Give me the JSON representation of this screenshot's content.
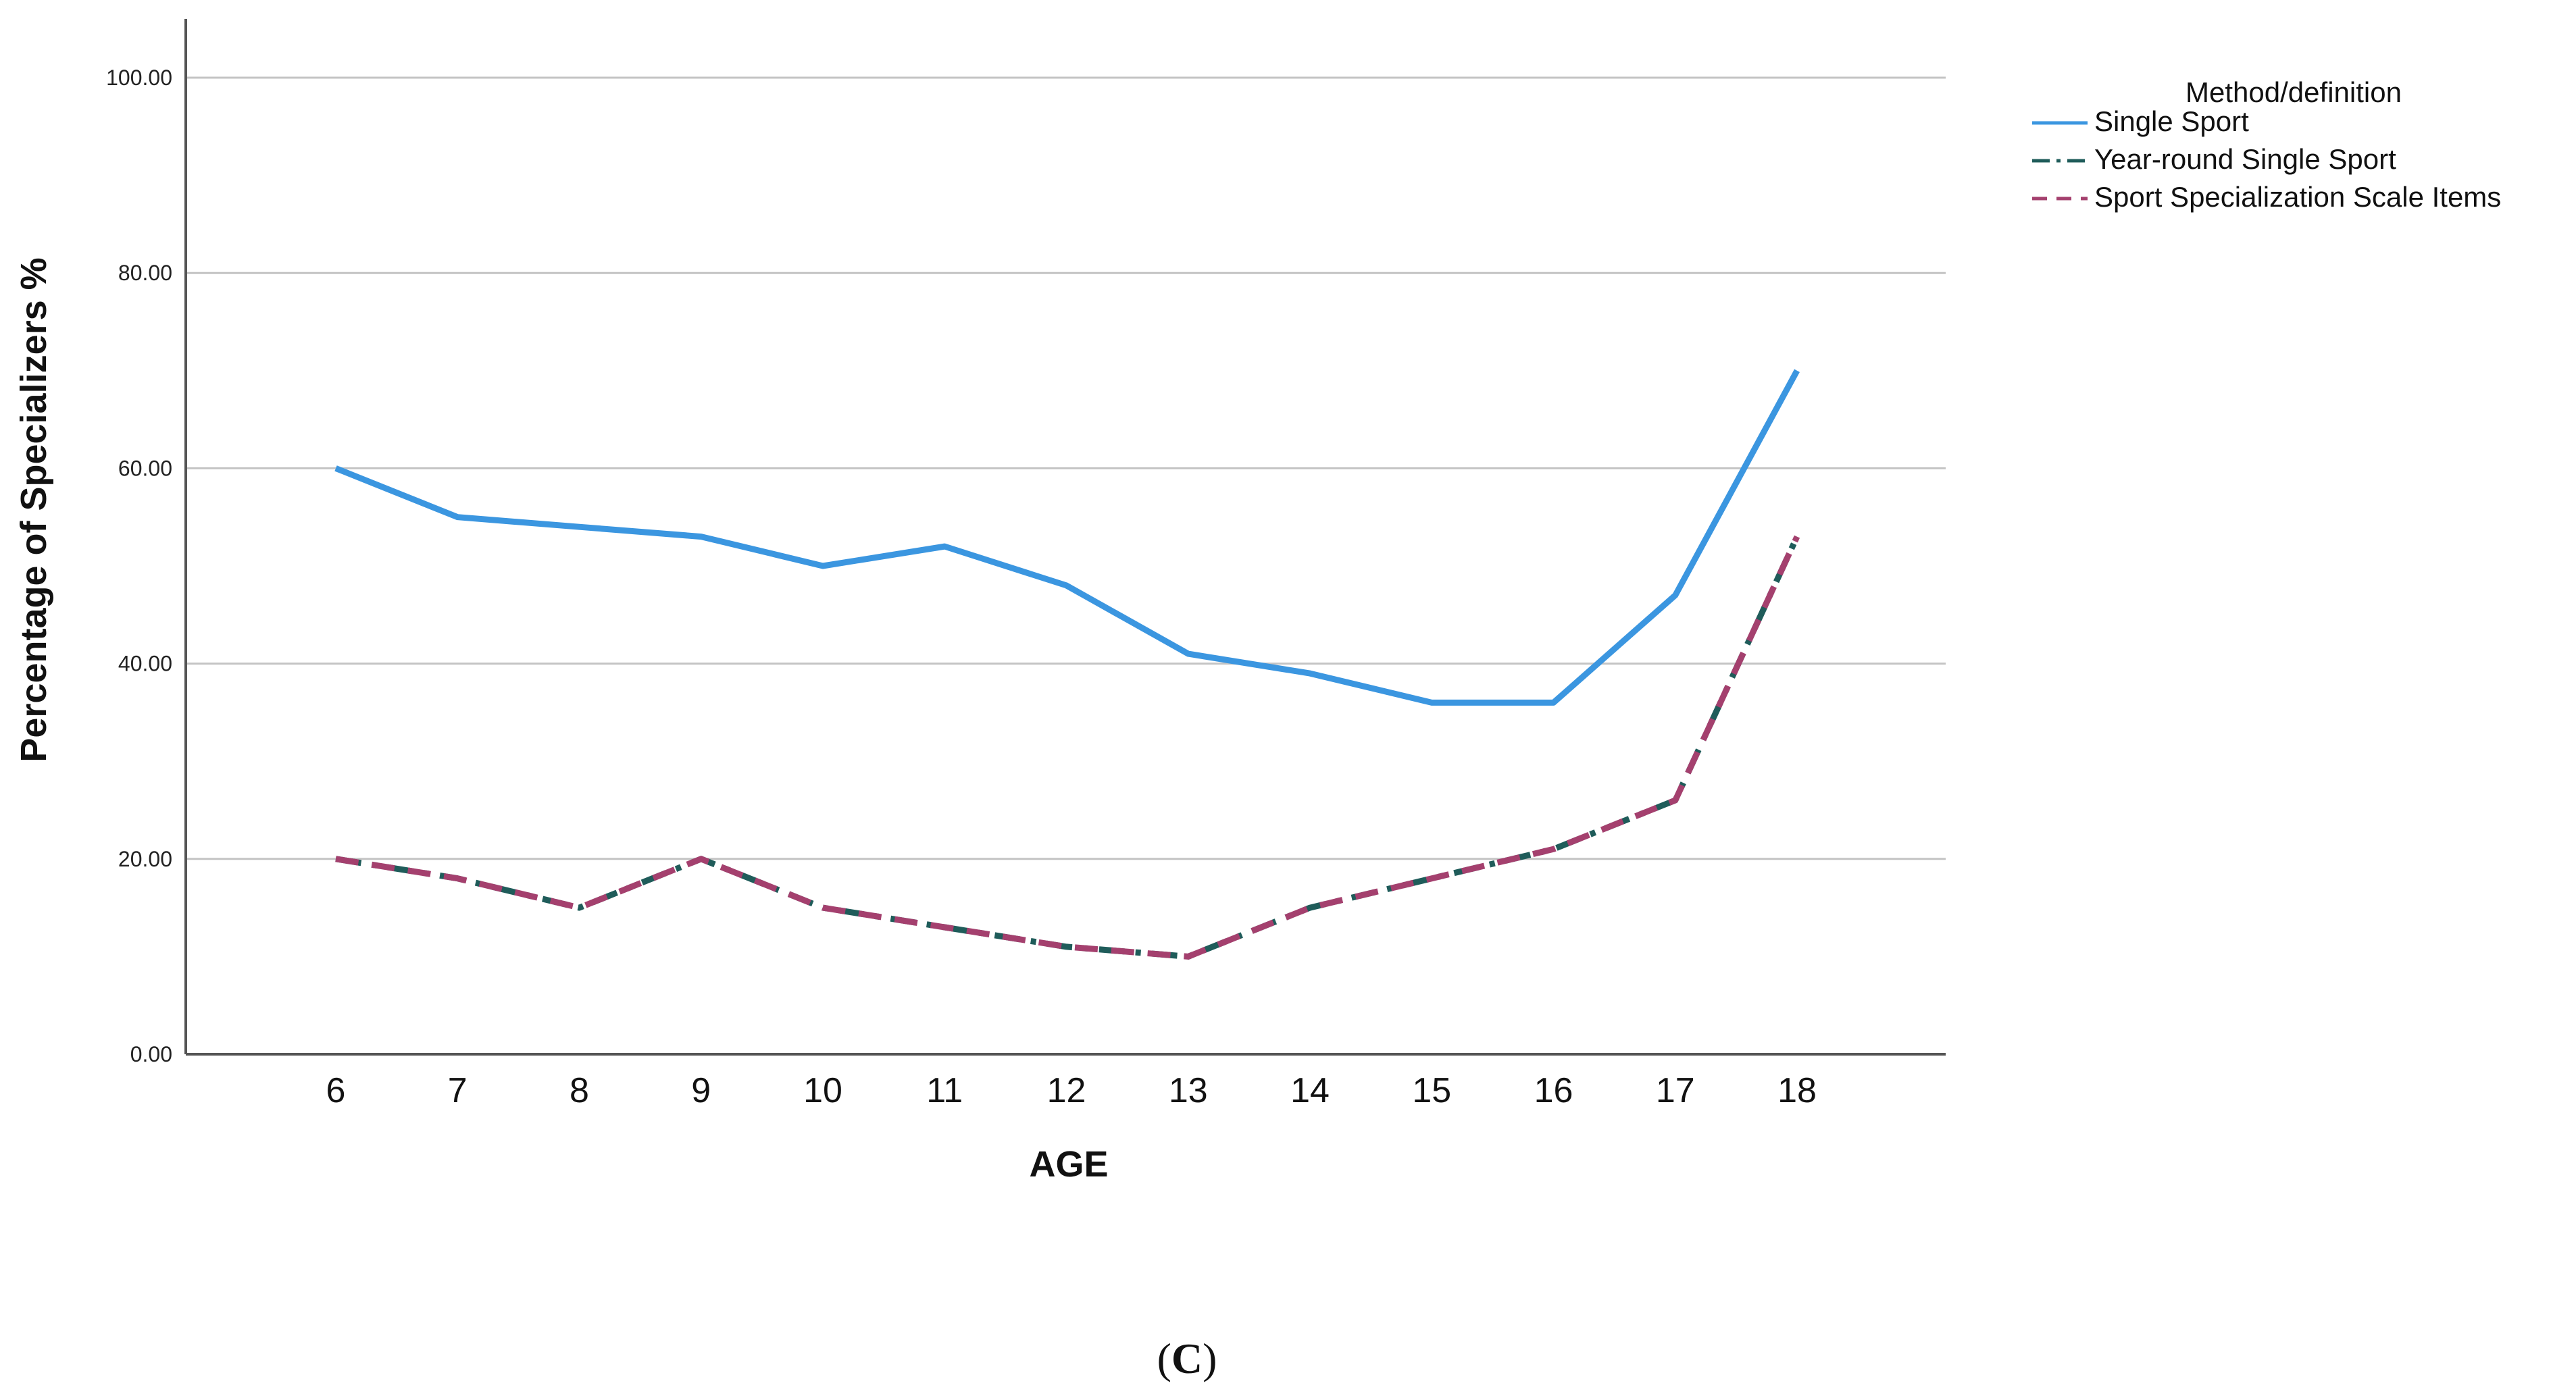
{
  "chart_data": {
    "type": "line",
    "title": "",
    "xlabel": "AGE",
    "ylabel": "Percentage of Specializers %",
    "x": [
      6,
      7,
      8,
      9,
      10,
      11,
      12,
      13,
      14,
      15,
      16,
      17,
      18
    ],
    "x_tick_labels": [
      "6",
      "7",
      "8",
      "9",
      "10",
      "11",
      "12",
      "13",
      "14",
      "15",
      "16",
      "17",
      "18"
    ],
    "y_ticks": [
      0,
      20,
      40,
      60,
      80,
      100
    ],
    "y_tick_labels": [
      "0.00",
      "20.00",
      "40.00",
      "60.00",
      "80.00",
      "100.00"
    ],
    "ylim": [
      0,
      100
    ],
    "grid": true,
    "legend_title": "Method/definition",
    "legend_position": "top-right",
    "series": [
      {
        "name": "Single Sport",
        "color": "#3b96e0",
        "style": "solid",
        "values": [
          60,
          55,
          54,
          53,
          50,
          52,
          48,
          41,
          39,
          36,
          36,
          47,
          70
        ]
      },
      {
        "name": "Year-round Single Sport",
        "color": "#1f5c5a",
        "style": "dashdot",
        "values": [
          20,
          18,
          15,
          20,
          15,
          13,
          11,
          10,
          15,
          18,
          21,
          26,
          53
        ]
      },
      {
        "name": "Sport Specialization Scale Items",
        "color": "#a4406e",
        "style": "dashed",
        "values": [
          20,
          18,
          15,
          20,
          15,
          13,
          11,
          10,
          15,
          18,
          21,
          26,
          53
        ]
      }
    ]
  },
  "caption": {
    "open": "(",
    "letter": "C",
    "close": ")"
  }
}
